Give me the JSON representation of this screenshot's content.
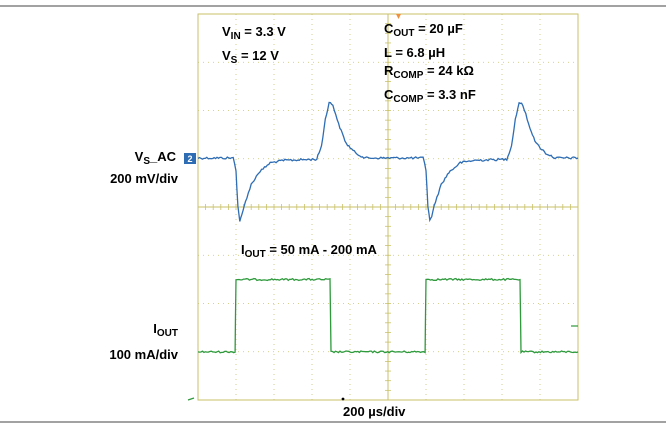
{
  "chart_data": {
    "type": "line",
    "title": "",
    "x_scale": "200 µs/div",
    "x_unit": "µs",
    "x_range_us": [
      0,
      2000
    ],
    "grid": true,
    "settings": {
      "vin": {
        "name": "V",
        "sub": "IN",
        "value": " = 3.3 V"
      },
      "vs": {
        "name": "V",
        "sub": "S",
        "value": " = 12 V"
      },
      "cout": {
        "name": "C",
        "sub": "OUT",
        "value": " = 20 µF"
      },
      "l": {
        "name": "L = 6.8 µH"
      },
      "rcomp": {
        "name": "R",
        "sub": "COMP",
        "value": " = 24 kΩ"
      },
      "ccomp": {
        "name": "C",
        "sub": "COMP",
        "value": " = 3.3 nF"
      }
    },
    "load_step": {
      "name": "I",
      "sub": "OUT",
      "value": " = 50 mA - 200 mA"
    },
    "series": [
      {
        "name": "V",
        "name_sub": "S",
        "name_suffix": "_AC",
        "scale": "200 mV/div",
        "marker": "2",
        "color": "#2e6db4",
        "unit": "mV",
        "points": [
          [
            0,
            0
          ],
          [
            185,
            0
          ],
          [
            200,
            -50
          ],
          [
            210,
            -200
          ],
          [
            220,
            -260
          ],
          [
            230,
            -240
          ],
          [
            250,
            -180
          ],
          [
            280,
            -110
          ],
          [
            320,
            -60
          ],
          [
            380,
            -20
          ],
          [
            450,
            -10
          ],
          [
            625,
            -5
          ],
          [
            650,
            50
          ],
          [
            670,
            160
          ],
          [
            690,
            230
          ],
          [
            710,
            220
          ],
          [
            740,
            140
          ],
          [
            780,
            60
          ],
          [
            830,
            20
          ],
          [
            880,
            0
          ],
          [
            1000,
            0
          ],
          [
            1185,
            0
          ],
          [
            1200,
            -50
          ],
          [
            1210,
            -200
          ],
          [
            1220,
            -260
          ],
          [
            1230,
            -240
          ],
          [
            1250,
            -180
          ],
          [
            1280,
            -110
          ],
          [
            1320,
            -60
          ],
          [
            1380,
            -20
          ],
          [
            1450,
            -10
          ],
          [
            1625,
            -5
          ],
          [
            1650,
            50
          ],
          [
            1670,
            160
          ],
          [
            1690,
            230
          ],
          [
            1710,
            220
          ],
          [
            1740,
            140
          ],
          [
            1780,
            60
          ],
          [
            1830,
            20
          ],
          [
            1880,
            0
          ],
          [
            2000,
            0
          ]
        ]
      },
      {
        "name": "I",
        "name_sub": "OUT",
        "scale": "100 mA/div",
        "color": "#2e9a3c",
        "unit": "mA",
        "points": [
          [
            0,
            50
          ],
          [
            195,
            50
          ],
          [
            200,
            200
          ],
          [
            695,
            200
          ],
          [
            700,
            50
          ],
          [
            1195,
            50
          ],
          [
            1200,
            200
          ],
          [
            1695,
            200
          ],
          [
            1700,
            50
          ],
          [
            2000,
            50
          ]
        ]
      }
    ]
  }
}
